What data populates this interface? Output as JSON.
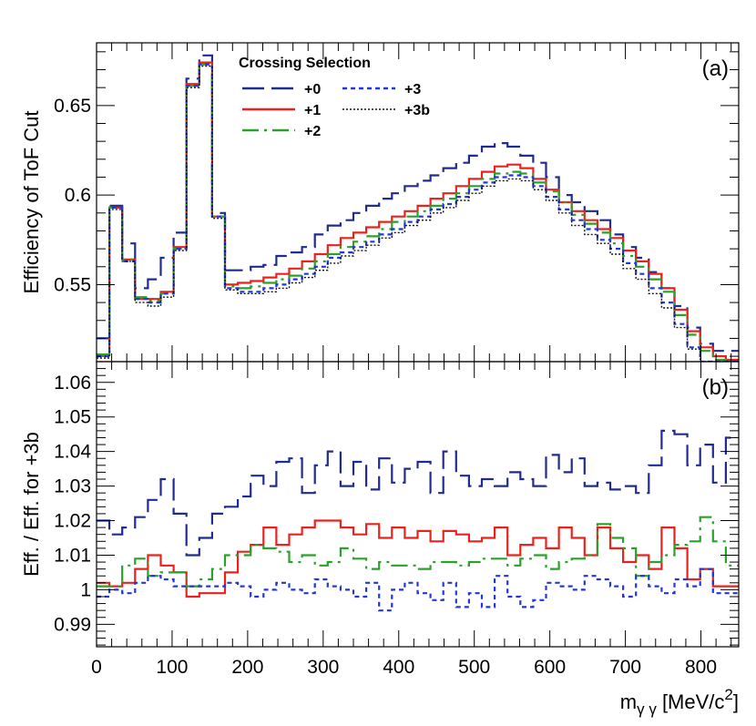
{
  "chart_data": [
    {
      "panel": "(a)",
      "type": "line",
      "ylabel": "Efficiency of ToF Cut",
      "xlim": [
        0,
        850
      ],
      "ylim": [
        0.507,
        0.685
      ],
      "yticks": [
        0.55,
        0.6,
        0.65
      ],
      "ytick_labels": [
        "0.55",
        "0.6",
        "0.65"
      ],
      "legend": {
        "title": "Crossing Selection",
        "placement": "top-center",
        "entries": [
          "+0",
          "+1",
          "+2",
          "+3",
          "+3b"
        ]
      },
      "bin_edges": [
        0,
        17,
        34,
        51,
        68,
        85,
        102,
        119,
        136,
        153,
        170,
        187,
        204,
        221,
        238,
        255,
        272,
        289,
        306,
        323,
        340,
        357,
        374,
        391,
        408,
        425,
        442,
        459,
        476,
        493,
        510,
        527,
        544,
        561,
        578,
        595,
        612,
        629,
        646,
        663,
        680,
        697,
        714,
        731,
        748,
        765,
        782,
        799,
        816,
        833,
        850
      ],
      "series": [
        {
          "name": "+0",
          "color": "#1f2b8f",
          "dash": "24 8",
          "values": [
            0.52,
            0.594,
            0.573,
            0.548,
            0.553,
            0.565,
            0.579,
            0.665,
            0.678,
            0.59,
            0.558,
            0.558,
            0.56,
            0.561,
            0.566,
            0.568,
            0.571,
            0.578,
            0.583,
            0.586,
            0.59,
            0.594,
            0.598,
            0.601,
            0.605,
            0.608,
            0.611,
            0.615,
            0.618,
            0.622,
            0.627,
            0.629,
            0.627,
            0.622,
            0.618,
            0.61,
            0.6,
            0.596,
            0.591,
            0.586,
            0.578,
            0.571,
            0.565,
            0.557,
            0.548,
            0.538,
            0.526,
            0.517,
            0.513,
            0.513
          ]
        },
        {
          "name": "+1",
          "color": "#e8221c",
          "dash": "",
          "values": [
            0.511,
            0.593,
            0.564,
            0.542,
            0.542,
            0.546,
            0.571,
            0.662,
            0.674,
            0.588,
            0.55,
            0.551,
            0.552,
            0.554,
            0.556,
            0.559,
            0.563,
            0.567,
            0.572,
            0.576,
            0.579,
            0.582,
            0.585,
            0.588,
            0.591,
            0.594,
            0.598,
            0.601,
            0.605,
            0.609,
            0.613,
            0.616,
            0.617,
            0.615,
            0.609,
            0.603,
            0.596,
            0.591,
            0.586,
            0.581,
            0.576,
            0.569,
            0.563,
            0.556,
            0.548,
            0.536,
            0.524,
            0.515,
            0.51,
            0.508
          ]
        },
        {
          "name": "+2",
          "color": "#2aa12a",
          "dash": "18 6 3 6",
          "values": [
            0.511,
            0.593,
            0.564,
            0.543,
            0.541,
            0.545,
            0.57,
            0.661,
            0.673,
            0.588,
            0.549,
            0.548,
            0.549,
            0.551,
            0.553,
            0.555,
            0.559,
            0.563,
            0.567,
            0.571,
            0.574,
            0.577,
            0.581,
            0.585,
            0.588,
            0.591,
            0.594,
            0.598,
            0.601,
            0.605,
            0.609,
            0.612,
            0.613,
            0.612,
            0.607,
            0.602,
            0.596,
            0.589,
            0.584,
            0.579,
            0.573,
            0.566,
            0.56,
            0.553,
            0.546,
            0.533,
            0.522,
            0.513,
            0.508,
            0.507
          ]
        },
        {
          "name": "+3",
          "color": "#2137d8",
          "dash": "5 4",
          "values": [
            0.51,
            0.593,
            0.563,
            0.542,
            0.54,
            0.545,
            0.57,
            0.661,
            0.673,
            0.588,
            0.548,
            0.546,
            0.546,
            0.548,
            0.55,
            0.553,
            0.556,
            0.56,
            0.565,
            0.568,
            0.571,
            0.574,
            0.578,
            0.581,
            0.585,
            0.588,
            0.592,
            0.595,
            0.599,
            0.603,
            0.607,
            0.61,
            0.611,
            0.61,
            0.605,
            0.599,
            0.592,
            0.586,
            0.581,
            0.575,
            0.57,
            0.562,
            0.556,
            0.548,
            0.54,
            0.528,
            0.515,
            0.507,
            0.507,
            0.507
          ]
        },
        {
          "name": "+3b",
          "color": "#111111",
          "dash": "2 2",
          "values": [
            0.509,
            0.592,
            0.563,
            0.54,
            0.538,
            0.543,
            0.569,
            0.66,
            0.672,
            0.587,
            0.547,
            0.545,
            0.545,
            0.546,
            0.548,
            0.551,
            0.554,
            0.558,
            0.562,
            0.566,
            0.569,
            0.572,
            0.576,
            0.579,
            0.583,
            0.586,
            0.59,
            0.593,
            0.597,
            0.601,
            0.605,
            0.608,
            0.609,
            0.608,
            0.603,
            0.597,
            0.59,
            0.583,
            0.578,
            0.573,
            0.567,
            0.559,
            0.553,
            0.545,
            0.537,
            0.526,
            0.514,
            0.507,
            0.507,
            0.507
          ]
        }
      ]
    },
    {
      "panel": "(b)",
      "type": "line",
      "ylabel": "Eff. / Eff. for +3b",
      "xlabel_main": "m",
      "xlabel_sub": "γ γ",
      "xlabel_unit": " [MeV/c",
      "xlabel_sup": "2",
      "xlabel_close": "]",
      "xlim": [
        0,
        850
      ],
      "ylim": [
        0.9835,
        1.066
      ],
      "xticks": [
        0,
        100,
        200,
        300,
        400,
        500,
        600,
        700,
        800
      ],
      "xtick_labels": [
        "0",
        "100",
        "200",
        "300",
        "400",
        "500",
        "600",
        "700",
        "800"
      ],
      "yticks": [
        0.99,
        1,
        1.01,
        1.02,
        1.03,
        1.04,
        1.05,
        1.06
      ],
      "ytick_labels": [
        "0.99",
        "1",
        "1.01",
        "1.02",
        "1.03",
        "1.04",
        "1.05",
        "1.06"
      ],
      "bin_edges": [
        0,
        17,
        34,
        51,
        68,
        85,
        102,
        119,
        136,
        153,
        170,
        187,
        204,
        221,
        238,
        255,
        272,
        289,
        306,
        323,
        340,
        357,
        374,
        391,
        408,
        425,
        442,
        459,
        476,
        493,
        510,
        527,
        544,
        561,
        578,
        595,
        612,
        629,
        646,
        663,
        680,
        697,
        714,
        731,
        748,
        765,
        782,
        799,
        816,
        833,
        850
      ],
      "series": [
        {
          "name": "+0",
          "color": "#1f2b8f",
          "dash": "24 8",
          "values": [
            1.02,
            1.016,
            1.018,
            1.021,
            1.026,
            1.032,
            1.022,
            1.01,
            1.015,
            1.022,
            1.024,
            1.027,
            1.033,
            1.03,
            1.037,
            1.038,
            1.028,
            1.036,
            1.04,
            1.03,
            1.037,
            1.029,
            1.038,
            1.031,
            1.035,
            1.037,
            1.028,
            1.04,
            1.033,
            1.03,
            1.032,
            1.03,
            1.034,
            1.032,
            1.03,
            1.039,
            1.034,
            1.038,
            1.03,
            1.031,
            1.029,
            1.03,
            1.028,
            1.036,
            1.046,
            1.045,
            1.036,
            1.042,
            1.031,
            1.044
          ]
        },
        {
          "name": "+1",
          "color": "#e8221c",
          "dash": "",
          "values": [
            1.002,
            1.001,
            1.002,
            1.006,
            1.01,
            1.007,
            1.005,
            0.998,
            0.999,
            0.999,
            1.005,
            1.011,
            1.013,
            1.018,
            1.013,
            1.016,
            1.018,
            1.02,
            1.02,
            1.018,
            1.016,
            1.019,
            1.015,
            1.018,
            1.015,
            1.017,
            1.014,
            1.017,
            1.016,
            1.014,
            1.015,
            1.018,
            1.01,
            1.013,
            1.015,
            1.012,
            1.018,
            1.015,
            1.01,
            1.018,
            1.012,
            1.008,
            1.01,
            1.006,
            1.018,
            1.012,
            1.003,
            1.006,
            1.001,
            1.001
          ]
        },
        {
          "name": "+2",
          "color": "#2aa12a",
          "dash": "18 6 3 6",
          "values": [
            1.001,
            1.001,
            1.007,
            1.009,
            1.004,
            1.005,
            1.005,
            1.001,
            1.003,
            1.006,
            1.01,
            1.01,
            1.013,
            1.012,
            1.011,
            1.008,
            1.01,
            1.007,
            1.008,
            1.012,
            1.009,
            1.006,
            1.008,
            1.007,
            1.007,
            1.006,
            1.008,
            1.008,
            1.007,
            1.008,
            1.009,
            1.009,
            1.007,
            1.009,
            1.01,
            1.006,
            1.008,
            1.009,
            1.01,
            1.019,
            1.015,
            1.012,
            1.004,
            1.008,
            1.01,
            1.013,
            1.014,
            1.021,
            1.014,
            1.007
          ]
        },
        {
          "name": "+3",
          "color": "#2137d8",
          "dash": "5 4",
          "values": [
            0.998,
            1.0,
            0.999,
            1.002,
            1.004,
            1.003,
            1.001,
            1.001,
            1.001,
            1.001,
            1.002,
            1.001,
            0.998,
            1.0,
            1.002,
            1.0,
            0.999,
            1.003,
            1.001,
            1.0,
            0.998,
            1.002,
            0.994,
            1.0,
            1.002,
            0.999,
            0.997,
            1.002,
            0.995,
            0.999,
            0.995,
            1.004,
            0.998,
            0.995,
            0.997,
            1.002,
            1.001,
            1.0,
            1.004,
            1.003,
            1.001,
            0.998,
            1.004,
            1.001,
            0.999,
            1.003,
            1.001,
            1.006,
            0.999,
            0.999
          ]
        }
      ]
    }
  ]
}
